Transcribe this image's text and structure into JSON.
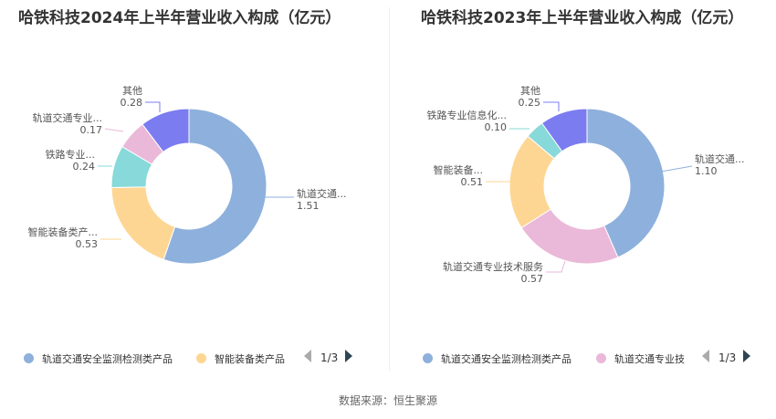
{
  "chart_data": [
    {
      "type": "pie",
      "title": "哈铁科技2024年上半年营业收入构成（亿元）",
      "slices": [
        {
          "name": "轨道交通安全监测检测类产品",
          "label": "轨道交通...",
          "value": 1.51,
          "value_text": "1.51",
          "color": "#8eb0dc"
        },
        {
          "name": "智能装备类产品",
          "label": "智能装备类产...",
          "value": 0.53,
          "value_text": "0.53",
          "color": "#fed693"
        },
        {
          "name": "铁路专业",
          "label": "铁路专业...",
          "value": 0.24,
          "value_text": "0.24",
          "color": "#88d9d9"
        },
        {
          "name": "轨道交通专业",
          "label": "轨道交通专业...",
          "value": 0.17,
          "value_text": "0.17",
          "color": "#eab8d8"
        },
        {
          "name": "其他",
          "label": "其他",
          "value": 0.28,
          "value_text": "0.28",
          "color": "#7b7cf0"
        }
      ],
      "legend": {
        "items": [
          {
            "name": "轨道交通安全监测检测类产品",
            "color": "#8eb0dc"
          },
          {
            "name": "智能装备类产品",
            "color": "#fed693"
          }
        ],
        "page": "1/3",
        "position": "bottom"
      }
    },
    {
      "type": "pie",
      "title": "哈铁科技2023年上半年营业收入构成（亿元）",
      "slices": [
        {
          "name": "轨道交通安全监测检测类产品",
          "label": "轨道交通...",
          "value": 1.1,
          "value_text": "1.10",
          "color": "#8eb0dc"
        },
        {
          "name": "轨道交通专业技术服务",
          "label": "轨道交通专业技术服务",
          "value": 0.57,
          "value_text": "0.57",
          "color": "#eab8d8"
        },
        {
          "name": "智能装备类产品",
          "label": "智能装备...",
          "value": 0.51,
          "value_text": "0.51",
          "color": "#fed693"
        },
        {
          "name": "铁路专业信息化",
          "label": "铁路专业信息化...",
          "value": 0.1,
          "value_text": "0.10",
          "color": "#88d9d9"
        },
        {
          "name": "其他",
          "label": "其他",
          "value": 0.25,
          "value_text": "0.25",
          "color": "#7b7cf0"
        }
      ],
      "legend": {
        "items": [
          {
            "name": "轨道交通安全监测检测类产品",
            "color": "#8eb0dc"
          },
          {
            "name": "轨道交通专业技",
            "color": "#eab8d8"
          }
        ],
        "page": "1/3",
        "position": "bottom"
      }
    }
  ],
  "footer": {
    "source": "数据来源：恒生聚源"
  }
}
